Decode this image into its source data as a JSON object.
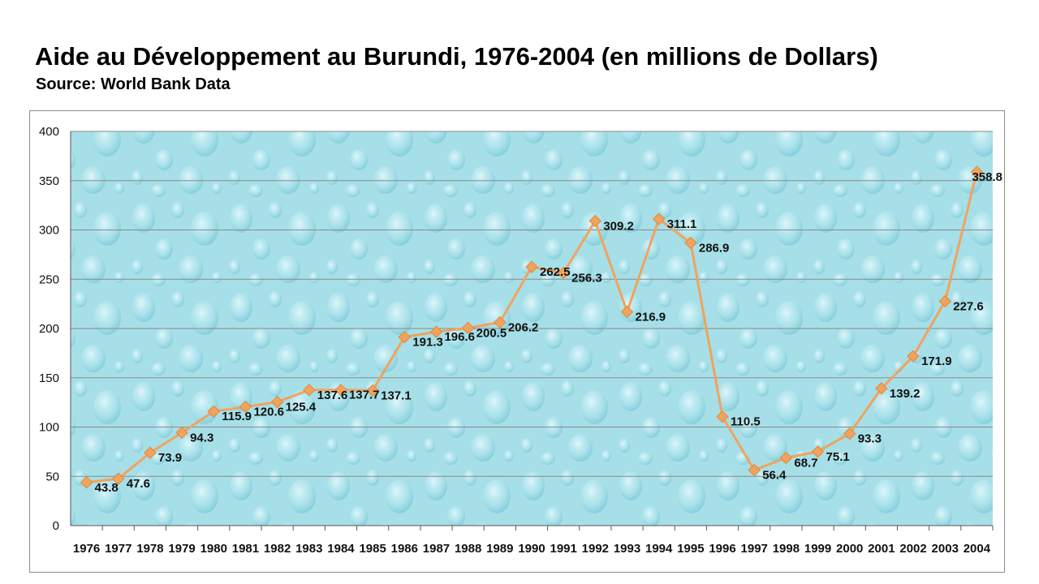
{
  "page": {
    "title": "Aide au Développement au Burundi, 1976-2004 (en millions de Dollars)",
    "subtitle": "Source: World Bank Data"
  },
  "chart_data": {
    "type": "line",
    "x": [
      "1976",
      "1977",
      "1978",
      "1979",
      "1980",
      "1981",
      "1982",
      "1983",
      "1984",
      "1985",
      "1986",
      "1987",
      "1988",
      "1989",
      "1990",
      "1991",
      "1992",
      "1993",
      "1994",
      "1995",
      "1996",
      "1997",
      "1998",
      "1999",
      "2000",
      "2001",
      "2002",
      "2003",
      "2004"
    ],
    "values": [
      43.8,
      47.6,
      73.9,
      94.3,
      115.9,
      120.6,
      125.4,
      137.6,
      137.7,
      137.1,
      191.3,
      196.6,
      200.5,
      206.2,
      262.5,
      256.3,
      309.2,
      216.9,
      311.1,
      286.9,
      110.5,
      56.4,
      68.7,
      75.1,
      93.3,
      139.2,
      171.9,
      227.6,
      358.8
    ],
    "labels": [
      "43.8",
      "47.6",
      "73.9",
      "94.3",
      "115.9",
      "120.6",
      "125.4",
      "137.6",
      "137.7",
      "137.1",
      "191.3",
      "196.6",
      "200.5",
      "206.2",
      "262.5",
      "256.3",
      "309.2",
      "216.9",
      "311.1",
      "286.9",
      "110.5",
      "56.4",
      "68.7",
      "75.1",
      "93.3",
      "139.2",
      "171.9",
      "227.6",
      "358.8"
    ],
    "ylim": [
      0,
      400
    ],
    "yticks": [
      "0",
      "50",
      "100",
      "150",
      "200",
      "250",
      "300",
      "350",
      "400"
    ],
    "grid": true,
    "legend": "none",
    "colors": {
      "line": "#F0A35E",
      "marker": "#F0A35E",
      "plot_bg": "#9FDCE6",
      "plot_bg_light": "#C9EEF3",
      "grid": "#8a8a8a"
    }
  }
}
